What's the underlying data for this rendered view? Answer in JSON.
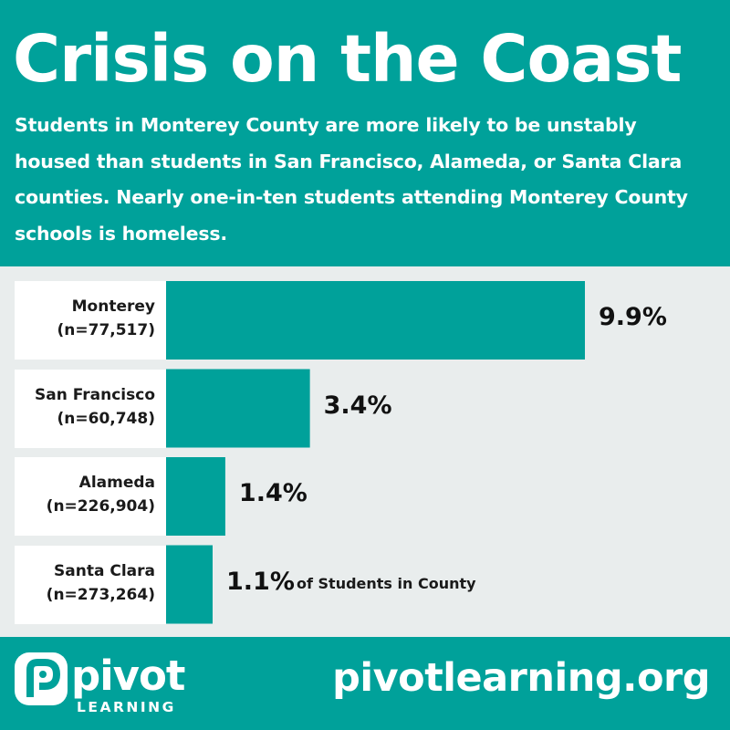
{
  "header": {
    "title": "Crisis on the Coast",
    "subtitle": "Students in Monterey County are more likely to be unstably housed than students in San Francisco, Alameda, or Santa Clara counties. Nearly one-in-ten students attending Monterey County schools is homeless."
  },
  "chart_data": {
    "type": "bar",
    "orientation": "horizontal",
    "categories": [
      "Monterey",
      "San Francisco",
      "Alameda",
      "Santa Clara"
    ],
    "sample_sizes": [
      "(n=77,517)",
      "(n=60,748)",
      "(n=226,904)",
      "(n=273,264)"
    ],
    "values": [
      9.9,
      3.4,
      1.4,
      1.1
    ],
    "value_labels": [
      "9.9%",
      "3.4%",
      "1.4%",
      "1.1%"
    ],
    "value_suffix": "of Students in County",
    "xlim": [
      0,
      9.9
    ],
    "grid": false,
    "bar_color": "#00a19a"
  },
  "footer": {
    "logo_text": "pivot",
    "logo_subtext": "LEARNING",
    "url": "pivotlearning.org"
  },
  "colors": {
    "brand": "#00a19a",
    "chart_background": "#e9eded",
    "label_background": "#ffffff"
  }
}
